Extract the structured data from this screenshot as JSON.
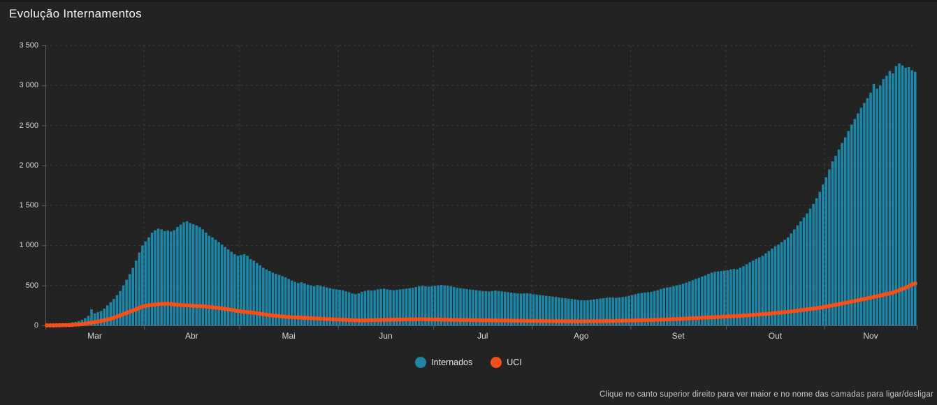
{
  "title": "Evolução Internamentos",
  "footer_hint": "Clique no canto superior direito para ver maior e no nome das camadas para ligar/desligar",
  "colors": {
    "background": "#232323",
    "bars": "#1e86a6",
    "line": "#f4501a",
    "grid": "#3e3e3e",
    "axis": "#5f5f5f",
    "text": "#d9d9d9"
  },
  "chart_data": {
    "type": "combo",
    "title": "Evolução Internamentos",
    "xlabel": "",
    "ylabel": "",
    "ylim": [
      0,
      3500
    ],
    "grid": "dashed",
    "legend_position": "bottom",
    "x_tick_labels": [
      "Mar",
      "Abr",
      "Mai",
      "Jun",
      "Jul",
      "Ago",
      "Set",
      "Out",
      "Nov"
    ],
    "days_per_month": [
      31,
      30,
      31,
      30,
      31,
      31,
      30,
      31,
      29
    ],
    "y_ticks": [
      0,
      500,
      1000,
      1500,
      2000,
      2500,
      3000,
      3500
    ],
    "y_tick_labels": [
      "0",
      "500",
      "1 000",
      "1 500",
      "2 000",
      "2 500",
      "3 000",
      "3 500"
    ],
    "series": [
      {
        "name": "Internados",
        "type": "bar",
        "color": "#1e86a6",
        "values": [
          2,
          3,
          5,
          8,
          10,
          15,
          20,
          30,
          40,
          45,
          55,
          70,
          90,
          120,
          200,
          150,
          165,
          180,
          210,
          250,
          290,
          330,
          380,
          430,
          500,
          570,
          640,
          720,
          810,
          910,
          1000,
          1050,
          1100,
          1160,
          1190,
          1210,
          1200,
          1180,
          1185,
          1175,
          1190,
          1230,
          1260,
          1290,
          1302,
          1280,
          1265,
          1250,
          1230,
          1200,
          1160,
          1120,
          1100,
          1070,
          1040,
          1010,
          980,
          950,
          920,
          890,
          870,
          880,
          890,
          870,
          830,
          810,
          780,
          750,
          720,
          700,
          680,
          660,
          645,
          630,
          615,
          600,
          580,
          560,
          545,
          530,
          540,
          525,
          510,
          500,
          490,
          505,
          495,
          485,
          475,
          465,
          455,
          450,
          445,
          440,
          425,
          415,
          400,
          390,
          400,
          420,
          430,
          440,
          435,
          440,
          450,
          455,
          460,
          450,
          445,
          440,
          445,
          450,
          455,
          460,
          465,
          470,
          480,
          490,
          495,
          490,
          485,
          490,
          495,
          500,
          505,
          500,
          495,
          490,
          480,
          470,
          465,
          460,
          455,
          450,
          445,
          440,
          435,
          430,
          428,
          425,
          430,
          435,
          430,
          425,
          420,
          415,
          410,
          405,
          400,
          398,
          400,
          402,
          398,
          390,
          385,
          380,
          375,
          370,
          365,
          360,
          355,
          350,
          345,
          340,
          335,
          330,
          325,
          318,
          315,
          312,
          315,
          320,
          325,
          330,
          335,
          340,
          345,
          350,
          348,
          345,
          350,
          355,
          360,
          370,
          380,
          390,
          400,
          405,
          410,
          415,
          420,
          430,
          440,
          455,
          465,
          475,
          480,
          490,
          500,
          510,
          520,
          535,
          550,
          565,
          580,
          595,
          610,
          625,
          645,
          660,
          670,
          675,
          680,
          685,
          690,
          700,
          705,
          700,
          720,
          740,
          765,
          790,
          810,
          830,
          850,
          870,
          900,
          930,
          960,
          990,
          1010,
          1040,
          1070,
          1100,
          1150,
          1200,
          1250,
          1300,
          1350,
          1400,
          1460,
          1520,
          1590,
          1670,
          1760,
          1850,
          1950,
          2050,
          2120,
          2200,
          2280,
          2350,
          2430,
          2510,
          2580,
          2650,
          2720,
          2780,
          2840,
          2910,
          3020,
          2960,
          3000,
          3080,
          3120,
          3180,
          3150,
          3240,
          3275,
          3250,
          3220,
          3230,
          3190,
          3170
        ]
      },
      {
        "name": "UCI",
        "type": "line",
        "color": "#f4501a",
        "values": [
          0,
          0,
          0,
          1,
          2,
          3,
          4,
          5,
          7,
          10,
          13,
          17,
          22,
          28,
          35,
          41,
          48,
          56,
          64,
          73,
          84,
          96,
          110,
          125,
          140,
          155,
          170,
          185,
          200,
          218,
          235,
          245,
          251,
          256,
          260,
          265,
          268,
          271,
          270,
          268,
          262,
          258,
          255,
          252,
          250,
          248,
          245,
          242,
          240,
          238,
          235,
          230,
          226,
          222,
          218,
          212,
          206,
          200,
          195,
          188,
          180,
          174,
          170,
          166,
          162,
          158,
          152,
          146,
          140,
          134,
          128,
          124,
          120,
          116,
          112,
          108,
          105,
          102,
          100,
          98,
          96,
          94,
          92,
          90,
          88,
          86,
          84,
          82,
          80,
          78,
          76,
          75,
          73,
          71,
          69,
          67,
          65,
          64,
          63,
          62,
          63,
          64,
          65,
          66,
          67,
          68,
          69,
          70,
          71,
          72,
          72,
          73,
          74,
          75,
          75,
          76,
          76,
          77,
          77,
          76,
          75,
          74,
          74,
          73,
          72,
          71,
          70,
          69,
          68,
          68,
          67,
          67,
          66,
          66,
          65,
          65,
          64,
          64,
          63,
          63,
          62,
          62,
          61,
          61,
          60,
          60,
          59,
          59,
          58,
          58,
          57,
          57,
          56,
          56,
          55,
          55,
          54,
          54,
          53,
          53,
          52,
          52,
          52,
          51,
          51,
          51,
          50,
          50,
          50,
          51,
          51,
          52,
          52,
          53,
          53,
          54,
          54,
          55,
          55,
          56,
          57,
          58,
          59,
          60,
          61,
          62,
          63,
          64,
          65,
          66,
          67,
          68,
          70,
          71,
          73,
          74,
          76,
          77,
          79,
          81,
          83,
          85,
          87,
          89,
          91,
          93,
          95,
          97,
          99,
          101,
          103,
          105,
          107,
          109,
          111,
          113,
          115,
          117,
          119,
          122,
          125,
          128,
          131,
          134,
          137,
          140,
          143,
          146,
          150,
          154,
          158,
          162,
          166,
          170,
          175,
          180,
          185,
          190,
          195,
          200,
          205,
          210,
          216,
          222,
          228,
          235,
          242,
          250,
          258,
          266,
          274,
          282,
          290,
          298,
          306,
          314,
          322,
          330,
          338,
          346,
          355,
          364,
          373,
          382,
          391,
          400,
          410,
          425,
          440,
          455,
          470,
          490,
          510,
          525
        ]
      }
    ]
  }
}
